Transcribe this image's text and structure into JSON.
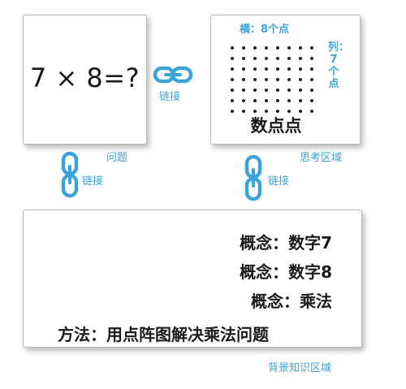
{
  "problem": {
    "expression": "7 × 8=?",
    "caption": "问题"
  },
  "thinking_area": {
    "row_label": "横：8个点",
    "column_label": "列：7个点",
    "dot_array": {
      "rows": 7,
      "columns": 8
    },
    "caption": "数点点",
    "area_label": "思考区域"
  },
  "links": {
    "horizontal_label": "链接",
    "left_vertical_label": "链接",
    "right_vertical_label": "链接"
  },
  "background_knowledge": {
    "concepts": [
      "概念：数字7",
      "概念：数字8",
      "概念：乘法"
    ],
    "method": "方法：用点阵图解决乘法问题",
    "area_label": "背景知识区域"
  },
  "colors": {
    "accent": "#3aa3d8",
    "text": "#1a1a1a",
    "border": "#b9b9b9"
  },
  "icons": [
    "chain-link-icon"
  ]
}
